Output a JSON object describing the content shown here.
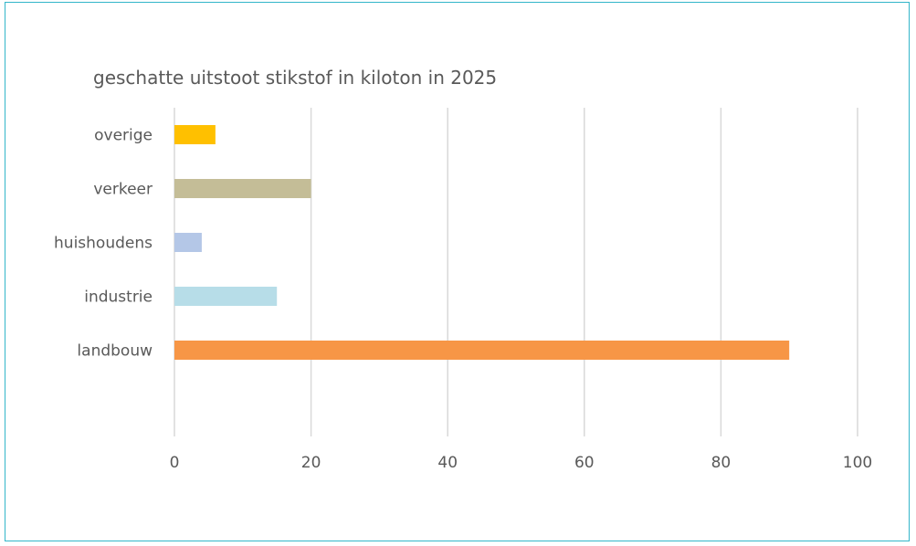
{
  "chart_data": {
    "type": "bar",
    "orientation": "horizontal",
    "title": "geschatte uitstoot stikstof in kiloton in 2025",
    "xlabel": "",
    "ylabel": "",
    "categories": [
      "overige",
      "verkeer",
      "huishoudens",
      "industrie",
      "landbouw"
    ],
    "values": [
      6,
      20,
      4,
      15,
      90
    ],
    "colors": [
      "#ffc000",
      "#c4bd97",
      "#b4c7e7",
      "#b7dde8",
      "#f79646"
    ],
    "xlim": [
      0,
      100
    ],
    "xticks": [
      0,
      20,
      40,
      60,
      80,
      100
    ],
    "grid": true,
    "legend": "none"
  },
  "colors": {
    "frame_border": "#33b6c9",
    "gridline": "#d9d9d9",
    "text": "#595959"
  }
}
